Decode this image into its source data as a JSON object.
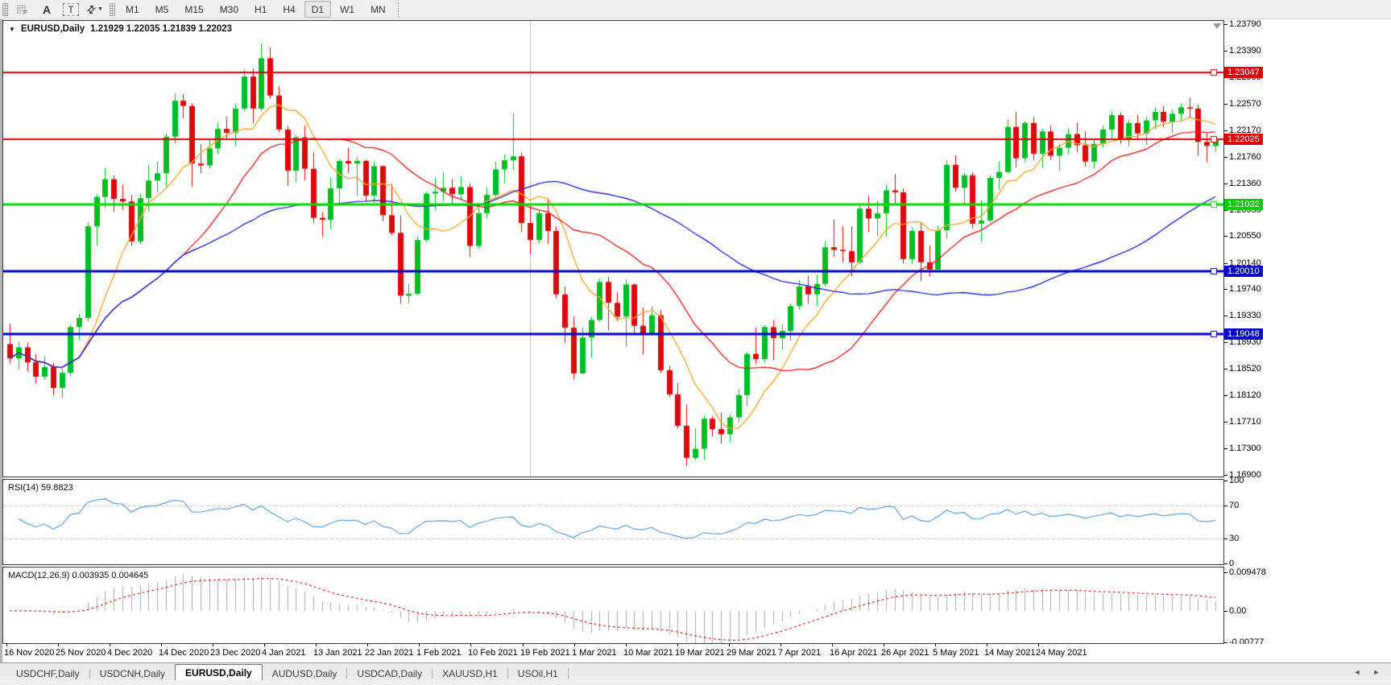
{
  "toolbar": {
    "grid_icon_label": "F",
    "font_button": "A",
    "text_button": "T",
    "timeframes": [
      {
        "label": "M1",
        "active": false
      },
      {
        "label": "M5",
        "active": false
      },
      {
        "label": "M15",
        "active": false
      },
      {
        "label": "M30",
        "active": false
      },
      {
        "label": "H1",
        "active": false
      },
      {
        "label": "H4",
        "active": false
      },
      {
        "label": "D1",
        "active": true
      },
      {
        "label": "W1",
        "active": false
      },
      {
        "label": "MN",
        "active": false
      }
    ]
  },
  "chart": {
    "symbol_period": "EURUSD,Daily",
    "ohlc_text": "1.21929 1.22035 1.21839 1.22023"
  },
  "price_axis": {
    "labels": [
      "1.23790",
      "1.23390",
      "1.22980",
      "1.22570",
      "1.22170",
      "1.21760",
      "1.21360",
      "1.20950",
      "1.20550",
      "1.20140",
      "1.19740",
      "1.19330",
      "1.18930",
      "1.18520",
      "1.18120",
      "1.17710",
      "1.17300",
      "1.16900"
    ],
    "badges": [
      {
        "text": "1.23047",
        "color": "#e00000"
      },
      {
        "text": "1.22025",
        "color": "#e00000"
      },
      {
        "text": "1.21032",
        "color": "#00cc00"
      },
      {
        "text": "1.20010",
        "color": "#0000c8"
      },
      {
        "text": "1.19048",
        "color": "#0000c8"
      }
    ]
  },
  "rsi_panel": {
    "label": "RSI(14) 59.8823",
    "axis_labels": [
      "100",
      "70",
      "30",
      "0"
    ],
    "levels": [
      70,
      30
    ],
    "line_color": "#5b9bd5"
  },
  "macd_panel": {
    "label": "MACD(12,26,9) 0.003935 0.004645",
    "axis_labels": [
      {
        "text": "0.009478",
        "value": 0.009478
      },
      {
        "text": "0.00",
        "value": 0
      },
      {
        "text": "-0.00777",
        "value": -0.00777
      }
    ],
    "histogram_color": "#ababab",
    "signal_color": "#d02020"
  },
  "date_axis": {
    "labels": [
      "16 Nov 2020",
      "25 Nov 2020",
      "4 Dec 2020",
      "14 Dec 2020",
      "23 Dec 2020",
      "4 Jan 2021",
      "13 Jan 2021",
      "22 Jan 2021",
      "1 Feb 2021",
      "10 Feb 2021",
      "19 Feb 2021",
      "1 Mar 2021",
      "10 Mar 2021",
      "19 Mar 2021",
      "29 Mar 2021",
      "7 Apr 2021",
      "16 Apr 2021",
      "26 Apr 2021",
      "5 May 2021",
      "14 May 2021",
      "24 May 2021"
    ]
  },
  "tabs": {
    "items": [
      {
        "label": "USDCHF,Daily",
        "active": false
      },
      {
        "label": "USDCNH,Daily",
        "active": false
      },
      {
        "label": "EURUSD,Daily",
        "active": true
      },
      {
        "label": "AUDUSD,Daily",
        "active": false
      },
      {
        "label": "USDCAD,Daily",
        "active": false
      },
      {
        "label": "XAUUSD,H1",
        "active": false
      },
      {
        "label": "USOil,H1",
        "active": false
      }
    ],
    "scroll_left_icon": "◄",
    "scroll_right_icon": "►"
  },
  "chart_data": {
    "type": "candlestick",
    "symbol": "EURUSD",
    "timeframe": "Daily",
    "price_range": {
      "top": 1.2384,
      "bottom": 1.16875
    },
    "up_color": "#00be26",
    "down_color": "#dc0a0a",
    "candles": [
      [
        1.189,
        1.1921,
        1.186,
        1.1868
      ],
      [
        1.1868,
        1.1894,
        1.1851,
        1.1885
      ],
      [
        1.1885,
        1.1892,
        1.1848,
        1.1862
      ],
      [
        1.1862,
        1.1875,
        1.183,
        1.184
      ],
      [
        1.184,
        1.1872,
        1.1835,
        1.1855
      ],
      [
        1.1855,
        1.1861,
        1.1812,
        1.1823
      ],
      [
        1.1823,
        1.1852,
        1.1808,
        1.1846
      ],
      [
        1.1846,
        1.192,
        1.184,
        1.1916
      ],
      [
        1.1916,
        1.1936,
        1.1896,
        1.193
      ],
      [
        1.193,
        1.2076,
        1.1924,
        1.207
      ],
      [
        1.207,
        1.2119,
        1.204,
        1.2115
      ],
      [
        1.2115,
        1.2159,
        1.2098,
        1.2142
      ],
      [
        1.2142,
        1.2148,
        1.2092,
        1.2112
      ],
      [
        1.2112,
        1.2134,
        1.2095,
        1.2108
      ],
      [
        1.2108,
        1.2118,
        1.204,
        1.2047
      ],
      [
        1.2047,
        1.212,
        1.2043,
        1.2113
      ],
      [
        1.2113,
        1.2164,
        1.2093,
        1.214
      ],
      [
        1.214,
        1.2169,
        1.2122,
        1.2151
      ],
      [
        1.2151,
        1.2212,
        1.213,
        1.2207
      ],
      [
        1.2207,
        1.2273,
        1.2196,
        1.2262
      ],
      [
        1.2262,
        1.2272,
        1.2235,
        1.2254
      ],
      [
        1.2254,
        1.2258,
        1.213,
        1.2166
      ],
      [
        1.2166,
        1.2196,
        1.2151,
        1.2163
      ],
      [
        1.2163,
        1.2202,
        1.2158,
        1.2189
      ],
      [
        1.2189,
        1.2229,
        1.2181,
        1.2219
      ],
      [
        1.2219,
        1.2238,
        1.2203,
        1.2213
      ],
      [
        1.2213,
        1.2258,
        1.2193,
        1.225
      ],
      [
        1.225,
        1.231,
        1.2246,
        1.2299
      ],
      [
        1.2299,
        1.2311,
        1.2228,
        1.225
      ],
      [
        1.225,
        1.2349,
        1.2247,
        1.2327
      ],
      [
        1.2327,
        1.2344,
        1.2265,
        1.227
      ],
      [
        1.227,
        1.2284,
        1.2214,
        1.2218
      ],
      [
        1.2218,
        1.2223,
        1.2132,
        1.2155
      ],
      [
        1.2155,
        1.221,
        1.2137,
        1.2206
      ],
      [
        1.2206,
        1.2224,
        1.214,
        1.2158
      ],
      [
        1.2158,
        1.2183,
        1.2075,
        1.2083
      ],
      [
        1.2083,
        1.2092,
        1.2054,
        1.208
      ],
      [
        1.208,
        1.2145,
        1.2066,
        1.2128
      ],
      [
        1.2128,
        1.2173,
        1.2102,
        1.217
      ],
      [
        1.217,
        1.219,
        1.2151,
        1.2166
      ],
      [
        1.2166,
        1.2176,
        1.2116,
        1.217
      ],
      [
        1.217,
        1.2172,
        1.2108,
        1.2117
      ],
      [
        1.2117,
        1.217,
        1.2106,
        1.2162
      ],
      [
        1.2162,
        1.2163,
        1.2078,
        1.2087
      ],
      [
        1.2087,
        1.2135,
        1.2056,
        1.206
      ],
      [
        1.206,
        1.2087,
        1.1952,
        1.1964
      ],
      [
        1.1964,
        1.1983,
        1.1952,
        1.1967
      ],
      [
        1.1967,
        1.2055,
        1.1965,
        1.2049
      ],
      [
        1.2049,
        1.2123,
        1.2046,
        1.212
      ],
      [
        1.212,
        1.2145,
        1.2095,
        1.2123
      ],
      [
        1.2123,
        1.2152,
        1.2109,
        1.2129
      ],
      [
        1.2129,
        1.2142,
        1.2103,
        1.2119
      ],
      [
        1.2119,
        1.2147,
        1.211,
        1.213
      ],
      [
        1.213,
        1.2136,
        1.2023,
        1.204
      ],
      [
        1.204,
        1.2098,
        1.2036,
        1.209
      ],
      [
        1.209,
        1.213,
        1.2082,
        1.2118
      ],
      [
        1.2118,
        1.2169,
        1.2113,
        1.2157
      ],
      [
        1.2157,
        1.218,
        1.2136,
        1.2171
      ],
      [
        1.2171,
        1.2243,
        1.2156,
        1.2177
      ],
      [
        1.2177,
        1.2183,
        1.2061,
        1.2075
      ],
      [
        1.2075,
        1.2101,
        1.2027,
        1.2049
      ],
      [
        1.2049,
        1.2094,
        1.2043,
        1.209
      ],
      [
        1.209,
        1.2113,
        1.2043,
        1.2063
      ],
      [
        1.2063,
        1.207,
        1.196,
        1.1966
      ],
      [
        1.1966,
        1.1978,
        1.1892,
        1.1915
      ],
      [
        1.1915,
        1.1932,
        1.1836,
        1.1845
      ],
      [
        1.1845,
        1.1915,
        1.1844,
        1.19
      ],
      [
        1.19,
        1.1932,
        1.1869,
        1.1927
      ],
      [
        1.1927,
        1.199,
        1.1924,
        1.1985
      ],
      [
        1.1985,
        1.1993,
        1.1911,
        1.1953
      ],
      [
        1.1953,
        1.1969,
        1.1925,
        1.1932
      ],
      [
        1.1932,
        1.1989,
        1.1886,
        1.1981
      ],
      [
        1.1981,
        1.1983,
        1.1906,
        1.1918
      ],
      [
        1.1918,
        1.1946,
        1.1874,
        1.1906
      ],
      [
        1.1906,
        1.1948,
        1.1903,
        1.1934
      ],
      [
        1.1934,
        1.1942,
        1.1846,
        1.185
      ],
      [
        1.185,
        1.1857,
        1.1809,
        1.1813
      ],
      [
        1.1813,
        1.1831,
        1.1761,
        1.1765
      ],
      [
        1.1765,
        1.1797,
        1.1704,
        1.1716
      ],
      [
        1.1716,
        1.1761,
        1.1712,
        1.173
      ],
      [
        1.173,
        1.1781,
        1.1713,
        1.1776
      ],
      [
        1.1776,
        1.178,
        1.1749,
        1.176
      ],
      [
        1.176,
        1.1785,
        1.1738,
        1.1752
      ],
      [
        1.1752,
        1.1782,
        1.174,
        1.1778
      ],
      [
        1.1778,
        1.1821,
        1.177,
        1.1812
      ],
      [
        1.1812,
        1.1878,
        1.1795,
        1.1875
      ],
      [
        1.1875,
        1.1915,
        1.186,
        1.1867
      ],
      [
        1.1867,
        1.1919,
        1.1861,
        1.1916
      ],
      [
        1.1916,
        1.1927,
        1.1865,
        1.1899
      ],
      [
        1.1899,
        1.192,
        1.1881,
        1.191
      ],
      [
        1.191,
        1.1952,
        1.1895,
        1.1948
      ],
      [
        1.1948,
        1.1988,
        1.1943,
        1.1978
      ],
      [
        1.1978,
        1.1994,
        1.1952,
        1.1966
      ],
      [
        1.1966,
        1.1996,
        1.1948,
        1.1982
      ],
      [
        1.1982,
        1.2048,
        1.1978,
        1.2038
      ],
      [
        1.2038,
        1.208,
        1.2023,
        1.2034
      ],
      [
        1.2034,
        1.207,
        1.2015,
        1.2032
      ],
      [
        1.2032,
        1.207,
        1.1994,
        1.2015
      ],
      [
        1.2015,
        1.2101,
        1.2012,
        1.2097
      ],
      [
        1.2097,
        1.2117,
        1.2061,
        1.2082
      ],
      [
        1.2082,
        1.2108,
        1.2055,
        1.209
      ],
      [
        1.209,
        1.2134,
        1.2054,
        1.2125
      ],
      [
        1.2125,
        1.215,
        1.2103,
        1.2122
      ],
      [
        1.2122,
        1.2128,
        1.2013,
        1.202
      ],
      [
        1.202,
        1.2068,
        1.2012,
        1.2063
      ],
      [
        1.2063,
        1.2076,
        1.1986,
        1.2015
      ],
      [
        1.2015,
        1.2041,
        1.1993,
        1.2004
      ],
      [
        1.2004,
        1.2071,
        1.2,
        1.2064
      ],
      [
        1.2064,
        1.2171,
        1.2051,
        1.2164
      ],
      [
        1.2164,
        1.2179,
        1.2123,
        1.2129
      ],
      [
        1.2129,
        1.2152,
        1.2105,
        1.2148
      ],
      [
        1.2148,
        1.2153,
        1.2066,
        1.2074
      ],
      [
        1.2074,
        1.211,
        1.2047,
        1.2079
      ],
      [
        1.2079,
        1.2148,
        1.2076,
        1.2144
      ],
      [
        1.2144,
        1.2169,
        1.2126,
        1.2153
      ],
      [
        1.2153,
        1.2234,
        1.2151,
        1.2222
      ],
      [
        1.2222,
        1.2245,
        1.216,
        1.2174
      ],
      [
        1.2174,
        1.2231,
        1.2168,
        1.2228
      ],
      [
        1.2228,
        1.2237,
        1.2171,
        1.2181
      ],
      [
        1.2181,
        1.2219,
        1.2159,
        1.2215
      ],
      [
        1.2215,
        1.2224,
        1.2171,
        1.2178
      ],
      [
        1.2178,
        1.2196,
        1.2155,
        1.219
      ],
      [
        1.219,
        1.222,
        1.218,
        1.2211
      ],
      [
        1.2211,
        1.2229,
        1.2183,
        1.2194
      ],
      [
        1.2194,
        1.2215,
        1.2161,
        1.2169
      ],
      [
        1.2169,
        1.2202,
        1.2158,
        1.2196
      ],
      [
        1.2196,
        1.2224,
        1.219,
        1.2218
      ],
      [
        1.2218,
        1.2246,
        1.2202,
        1.224
      ],
      [
        1.224,
        1.2244,
        1.2196,
        1.2204
      ],
      [
        1.2204,
        1.2233,
        1.2192,
        1.2228
      ],
      [
        1.2228,
        1.224,
        1.2204,
        1.2212
      ],
      [
        1.2212,
        1.2238,
        1.2194,
        1.2232
      ],
      [
        1.2232,
        1.2252,
        1.2218,
        1.2245
      ],
      [
        1.2245,
        1.2254,
        1.2222,
        1.223
      ],
      [
        1.223,
        1.2249,
        1.2212,
        1.2242
      ],
      [
        1.2242,
        1.2258,
        1.223,
        1.2252
      ],
      [
        1.2252,
        1.2267,
        1.2236,
        1.225
      ],
      [
        1.225,
        1.2256,
        1.2178,
        1.2199
      ],
      [
        1.2199,
        1.2212,
        1.2168,
        1.2193
      ],
      [
        1.21929,
        1.22035,
        1.21839,
        1.22023
      ]
    ],
    "moving_averages": [
      {
        "period": 8,
        "color": "#fba72e"
      },
      {
        "period": 21,
        "color": "#e02828"
      },
      {
        "period": 55,
        "color": "#2626cc"
      }
    ],
    "horizontal_lines": [
      {
        "value": 1.23047,
        "color": "#e00000",
        "width": 2
      },
      {
        "value": 1.22025,
        "color": "#e00000",
        "width": 2
      },
      {
        "value": 1.21032,
        "color": "#00dd00",
        "width": 3
      },
      {
        "value": 1.2001,
        "color": "#0000c8",
        "width": 3
      },
      {
        "value": 1.19048,
        "color": "#0000c8",
        "width": 3
      }
    ],
    "vertical_line": {
      "bar_index": 60,
      "color": "#c0c0c0"
    },
    "rsi": {
      "period": 14,
      "last_value": 59.8823,
      "scale": [
        0,
        100
      ],
      "overbought": 70,
      "oversold": 30
    },
    "macd": {
      "fast": 12,
      "slow": 26,
      "signal": 9,
      "last_macd": 0.003935,
      "last_signal": 0.004645,
      "scale_top": 0.009478,
      "scale_bottom": -0.00777
    }
  }
}
